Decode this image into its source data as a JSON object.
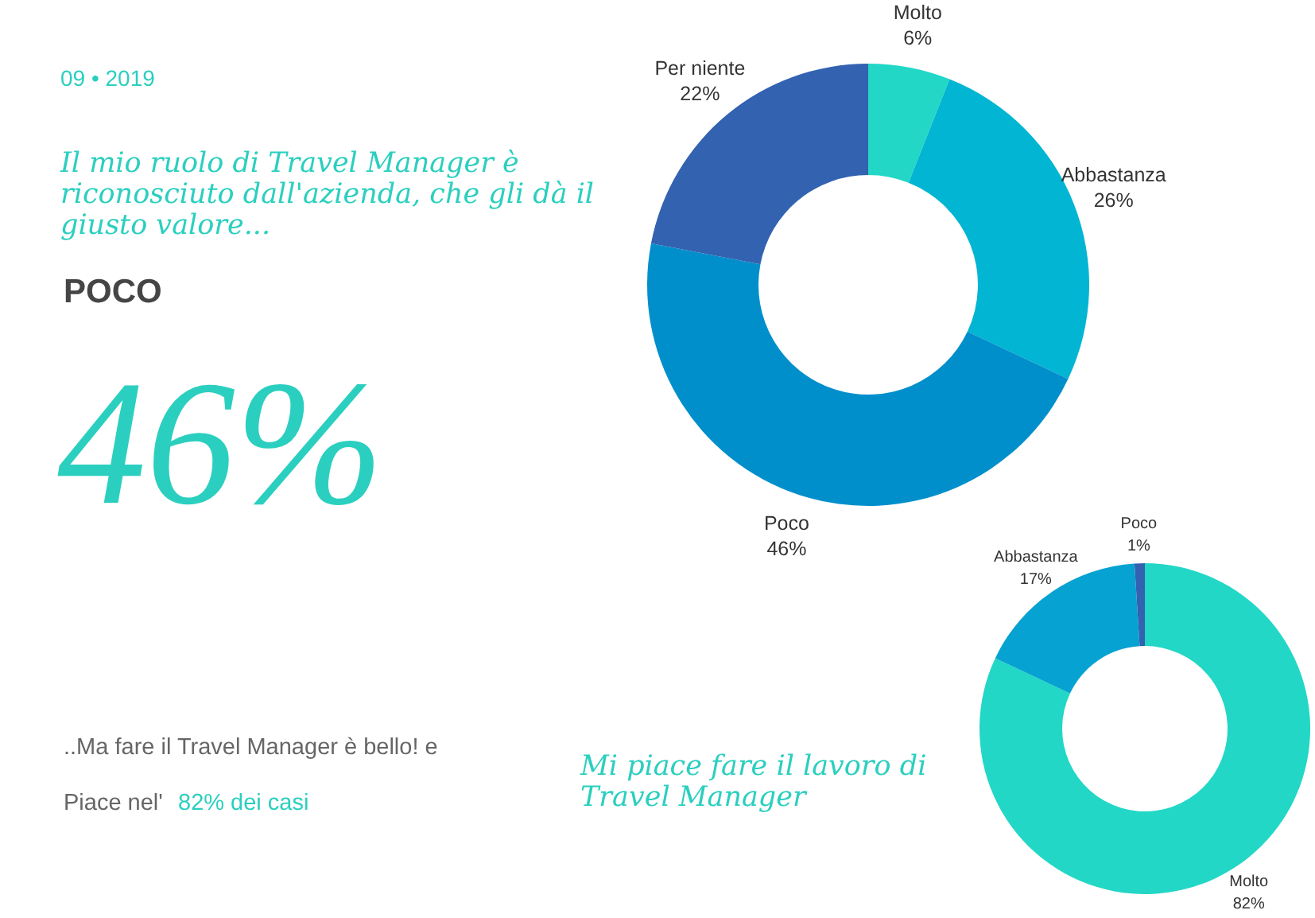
{
  "chart_data": [
    {
      "type": "donut",
      "title": "Il mio ruolo di Travel Manager è riconosciuto dall'azienda, che gli dà il giusto valore...",
      "categories": [
        "Molto",
        "Abbastanza",
        "Poco",
        "Per niente"
      ],
      "values": [
        6,
        26,
        46,
        22
      ],
      "colors": [
        "#22d7c6",
        "#01b5d3",
        "#018fcc",
        "#3262b0"
      ],
      "value_labels": [
        "6%",
        "26%",
        "46%",
        "22%"
      ],
      "annotations": [
        "09 • 2019",
        "POCO",
        "46%"
      ]
    },
    {
      "type": "donut",
      "title": "Mi piace fare il lavoro di Travel Manager",
      "categories": [
        "Molto",
        "Abbastanza",
        "Poco"
      ],
      "values": [
        82,
        17,
        1
      ],
      "colors": [
        "#22d7c6",
        "#06a2d1",
        "#3262b0"
      ],
      "value_labels": [
        "82%",
        "17%",
        "1%"
      ],
      "annotations": [
        "..Ma fare il Travel Manager è bello! e",
        "Piace nel'",
        "82% dei casi"
      ]
    }
  ]
}
